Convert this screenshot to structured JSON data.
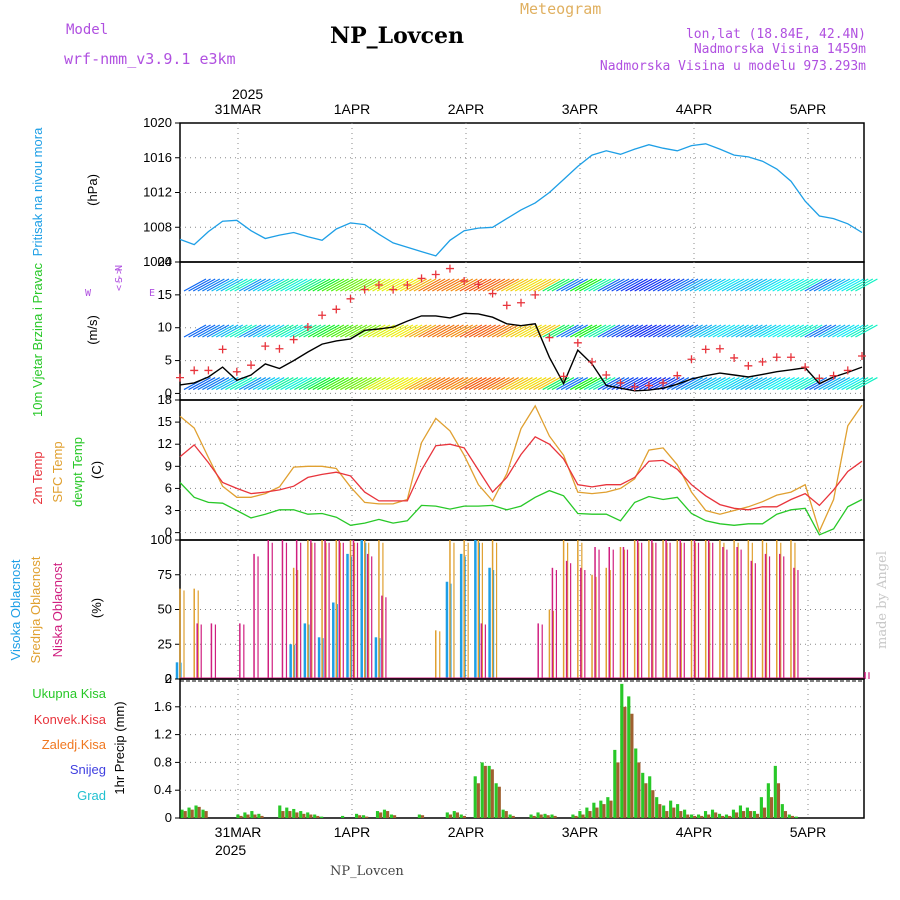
{
  "header": {
    "model_label": "Model",
    "model_name": "wrf-nmm_v3.9.1 e3km",
    "station": "NP_Lovcen",
    "product": "Meteogram",
    "lonlat": "lon,lat (18.84E, 42.4N)",
    "elevation": "Nadmorska Visina 1459m",
    "model_elevation": "Nadmorska Visina u modelu 973.293m"
  },
  "footer": {
    "station": "NP_Lovcen",
    "credit": "made by Angel"
  },
  "colors": {
    "pressure": "#1e9fe6",
    "wind_speed": "#000000",
    "gust": "#e8343c",
    "t2m": "#e8343c",
    "tsfc": "#e0a030",
    "dewpt": "#28c828",
    "cloud_high": "#1e9fe6",
    "cloud_mid": "#e0a030",
    "cloud_low": "#d02080",
    "precip_total": "#28c828",
    "precip_conv": "#e8343c",
    "precip_frz": "#f07820",
    "snow": "#4040e0",
    "hail": "#20c0d0",
    "label_purple": "#b050e0"
  },
  "chart_data": [
    {
      "type": "line",
      "panel": "pressure",
      "title": "Pritisak na nivou mora",
      "ylabel": "(hPa)",
      "ylim": [
        1004,
        1020
      ],
      "yticks": [
        "1004",
        "1008",
        "1012",
        "1016",
        "1020"
      ],
      "x_hours_start": 0,
      "x_step_hours": 3,
      "dates_top": [
        "31MAR",
        "1APR",
        "2APR",
        "3APR",
        "4APR",
        "5APR"
      ],
      "year": "2025",
      "series": [
        {
          "name": "Pritisak",
          "values": [
            1006.6,
            1006.0,
            1007.5,
            1008.7,
            1008.8,
            1007.6,
            1006.7,
            1007.1,
            1007.4,
            1006.9,
            1006.5,
            1007.8,
            1008.5,
            1008.3,
            1007.2,
            1006.2,
            1005.7,
            1005.2,
            1004.7,
            1006.5,
            1007.6,
            1007.9,
            1008.0,
            1009.0,
            1010.0,
            1010.8,
            1012.0,
            1013.5,
            1015.0,
            1016.3,
            1016.8,
            1016.4,
            1017.0,
            1017.5,
            1017.1,
            1016.8,
            1017.4,
            1017.6,
            1017.0,
            1016.3,
            1016.1,
            1015.6,
            1014.7,
            1013.3,
            1011.0,
            1009.3,
            1009.0,
            1008.4,
            1007.4
          ]
        }
      ]
    },
    {
      "type": "line",
      "panel": "wind",
      "title": "10m Vjetar Brzina i Pravac",
      "ylabel": "(m/s)",
      "ylim": [
        -1,
        20
      ],
      "yticks": [
        "0",
        "5",
        "10",
        "15",
        "20"
      ],
      "direction_legend": [
        "W",
        "<-",
        "S",
        "N",
        "->",
        "E"
      ],
      "series": [
        {
          "name": "Brzina",
          "values": [
            1.3,
            1.6,
            2.5,
            4.0,
            2.0,
            2.8,
            4.5,
            3.8,
            5.0,
            6.3,
            7.5,
            8.0,
            8.3,
            9.6,
            9.8,
            10.1,
            11.0,
            11.8,
            11.8,
            11.5,
            12.2,
            12.1,
            11.6,
            10.6,
            10.3,
            10.6,
            5.5,
            1.5,
            6.6,
            4.5,
            1.2,
            0.8,
            0.4,
            0.5,
            0.8,
            1.4,
            2.2,
            2.7,
            3.1,
            2.8,
            2.5,
            2.9,
            3.3,
            3.6,
            3.9,
            1.5,
            2.5,
            3.2,
            4.0
          ]
        },
        {
          "name": "Udari",
          "values": [
            2.4,
            3.5,
            3.5,
            6.7,
            3.3,
            4.3,
            7.2,
            6.8,
            8.2,
            10.1,
            11.9,
            12.8,
            14.4,
            15.8,
            16.5,
            15.8,
            16.5,
            17.5,
            18.1,
            19.0,
            17.1,
            16.6,
            15.2,
            13.4,
            13.8,
            15.0,
            8.5,
            2.6,
            7.7,
            4.8,
            2.8,
            1.6,
            1.0,
            1.2,
            1.6,
            2.7,
            5.2,
            6.7,
            6.8,
            5.4,
            4.2,
            4.8,
            5.5,
            5.5,
            4.0,
            2.3,
            2.7,
            3.5,
            5.7
          ]
        }
      ]
    },
    {
      "type": "line",
      "panel": "temperature",
      "ylabels": [
        "2m Temp",
        "SFC Temp",
        "dewpt Temp"
      ],
      "ylabel": "(C)",
      "ylim": [
        -1,
        18
      ],
      "yticks": [
        "0",
        "3",
        "6",
        "9",
        "12",
        "15",
        "18"
      ],
      "series": [
        {
          "name": "2m Temp",
          "values": [
            10.3,
            11.9,
            9.5,
            6.8,
            6.0,
            5.3,
            5.5,
            5.8,
            6.3,
            7.5,
            7.9,
            8.2,
            7.7,
            5.5,
            4.3,
            4.3,
            4.3,
            8.5,
            11.8,
            12.0,
            11.5,
            8.5,
            5.5,
            7.5,
            10.6,
            13.0,
            12.0,
            10.0,
            6.5,
            6.2,
            6.5,
            6.5,
            7.5,
            9.7,
            9.8,
            8.6,
            6.5,
            5.0,
            3.8,
            3.3,
            3.1,
            3.5,
            3.5,
            4.5,
            5.3,
            3.7,
            5.8,
            8.3,
            9.7
          ]
        },
        {
          "name": "SFC Temp",
          "values": [
            15.8,
            14.2,
            10.2,
            6.3,
            4.8,
            4.8,
            5.3,
            6.2,
            8.9,
            9.0,
            9.0,
            8.7,
            6.2,
            4.1,
            3.9,
            3.9,
            4.5,
            12.2,
            15.5,
            13.8,
            10.5,
            6.5,
            4.3,
            8.0,
            14.1,
            17.2,
            13.1,
            10.5,
            5.5,
            5.3,
            5.5,
            6.0,
            7.3,
            11.2,
            11.5,
            9.2,
            5.5,
            3.0,
            2.5,
            3.0,
            3.5,
            4.2,
            5.1,
            5.5,
            6.5,
            0.2,
            4.5,
            14.5,
            17.3
          ]
        },
        {
          "name": "dewpt Temp",
          "values": [
            6.8,
            4.8,
            4.1,
            4.0,
            3.0,
            2.0,
            2.5,
            3.1,
            3.1,
            2.5,
            2.6,
            2.1,
            1.0,
            1.3,
            1.8,
            1.3,
            1.6,
            3.7,
            3.6,
            3.2,
            3.6,
            3.6,
            3.7,
            3.1,
            3.6,
            4.8,
            5.7,
            5.0,
            2.6,
            2.5,
            2.5,
            1.6,
            4.1,
            4.9,
            4.5,
            4.8,
            2.6,
            1.6,
            1.2,
            1.0,
            1.2,
            1.2,
            2.5,
            3.1,
            3.3,
            -0.3,
            0.5,
            3.5,
            4.5
          ]
        }
      ]
    },
    {
      "type": "bar",
      "panel": "clouds",
      "ylabels": [
        "Visoka Oblacnost",
        "Srednja Oblacnost",
        "Niska Oblacnost"
      ],
      "ylabel": "(%)",
      "ylim": [
        0,
        100
      ],
      "yticks": [
        "0",
        "25",
        "50",
        "75",
        "100"
      ],
      "series": [
        {
          "name": "Visoka Oblacnost",
          "values": [
            12,
            0,
            0,
            0,
            0,
            0,
            0,
            0,
            25,
            40,
            30,
            55,
            90,
            100,
            30,
            0,
            0,
            0,
            0,
            70,
            90,
            100,
            80,
            0,
            0,
            0,
            0,
            0,
            0,
            0,
            0,
            0,
            0,
            0,
            0,
            0,
            0,
            0,
            0,
            0,
            0,
            0,
            0,
            0,
            0,
            0,
            0,
            0,
            0
          ]
        },
        {
          "name": "Srednja Oblacnost",
          "values": [
            65,
            65,
            0,
            0,
            0,
            0,
            0,
            0,
            80,
            100,
            100,
            100,
            100,
            100,
            100,
            0,
            0,
            0,
            35,
            100,
            100,
            100,
            100,
            0,
            0,
            0,
            50,
            100,
            100,
            75,
            80,
            95,
            100,
            100,
            100,
            100,
            100,
            100,
            100,
            100,
            100,
            100,
            100,
            100,
            0,
            0,
            0,
            0,
            0
          ]
        },
        {
          "name": "Niska Oblacnost",
          "values": [
            0,
            40,
            40,
            0,
            40,
            90,
            100,
            100,
            100,
            100,
            100,
            100,
            100,
            90,
            60,
            0,
            0,
            0,
            0,
            0,
            0,
            40,
            0,
            0,
            0,
            40,
            80,
            85,
            80,
            95,
            95,
            95,
            100,
            100,
            100,
            100,
            100,
            100,
            95,
            95,
            85,
            90,
            90,
            80,
            0,
            0,
            0,
            0,
            5
          ]
        }
      ]
    },
    {
      "type": "bar",
      "panel": "precipitation",
      "ylabels": [
        "Ukupna Kisa",
        "Konvek.Kisa",
        "Zaledj.Kisa",
        "Snijeg",
        "Grad"
      ],
      "ylabel": "1hr Precip (mm)",
      "ylim": [
        0,
        2
      ],
      "yticks": [
        "0",
        "0.4",
        "0.8",
        "1.2",
        "1.6",
        "2"
      ],
      "series": [
        {
          "name": "Ukupna Kisa",
          "values": [
            0.12,
            0.15,
            0.18,
            0.12,
            0,
            0,
            0,
            0,
            0.05,
            0.08,
            0.1,
            0.06,
            0,
            0,
            0.18,
            0.15,
            0.13,
            0.1,
            0.08,
            0.05,
            0.02,
            0,
            0,
            0.03,
            0,
            0.06,
            0.04,
            0,
            0.1,
            0.12,
            0.05,
            0,
            0,
            0,
            0.05,
            0,
            0,
            0,
            0.08,
            0.1,
            0.05,
            0,
            0.6,
            0.8,
            0.75,
            0.5,
            0.12,
            0.05,
            0,
            0,
            0.05,
            0.08,
            0.06,
            0.05,
            0,
            0,
            0.05,
            0.1,
            0.15,
            0.22,
            0.25,
            0.3,
            0.98,
            1.93,
            1.75,
            1.0,
            0.65,
            0.6,
            0.3,
            0.18,
            0.25,
            0.2,
            0.12,
            0.05,
            0.05,
            0.1,
            0.12,
            0.06,
            0.05,
            0.12,
            0.18,
            0.15,
            0.1,
            0.3,
            0.5,
            0.75,
            0.2,
            0.05,
            0.02,
            0,
            0,
            0,
            0,
            0,
            0,
            0,
            0,
            0
          ]
        },
        {
          "name": "Konvek.Kisa",
          "values": [
            0.1,
            0.12,
            0.16,
            0.1,
            0,
            0,
            0,
            0,
            0.03,
            0.05,
            0.05,
            0.03,
            0,
            0,
            0.1,
            0.1,
            0.08,
            0.06,
            0.05,
            0.03,
            0,
            0,
            0,
            0,
            0,
            0.04,
            0.02,
            0,
            0.08,
            0.1,
            0.04,
            0,
            0,
            0,
            0.04,
            0,
            0,
            0,
            0.05,
            0.08,
            0.03,
            0,
            0.5,
            0.75,
            0.7,
            0.45,
            0.1,
            0.03,
            0,
            0,
            0.03,
            0.05,
            0.04,
            0.03,
            0,
            0,
            0.03,
            0.05,
            0.1,
            0.15,
            0.2,
            0.25,
            0.8,
            1.6,
            1.5,
            0.8,
            0.5,
            0.4,
            0.2,
            0.1,
            0.15,
            0.1,
            0.05,
            0.03,
            0.03,
            0.05,
            0.08,
            0.03,
            0.03,
            0.08,
            0.1,
            0.1,
            0.06,
            0.15,
            0.3,
            0.5,
            0.1,
            0.03,
            0,
            0,
            0,
            0,
            0,
            0,
            0,
            0,
            0,
            0
          ]
        }
      ]
    }
  ]
}
